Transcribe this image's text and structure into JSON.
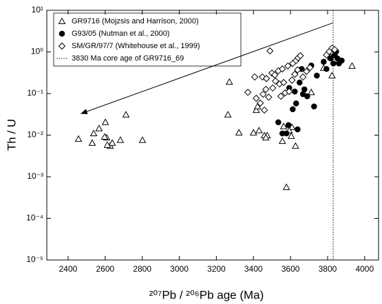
{
  "chart_data": {
    "type": "scatter",
    "x_label": "²⁰⁷Pb / ²⁰⁶Pb age (Ma)",
    "y_label": "Th / U",
    "xlim": [
      2285,
      4075
    ],
    "ylim": [
      1e-05,
      10
    ],
    "log_y": true,
    "xticks": [
      2400,
      2600,
      2800,
      3000,
      3200,
      3400,
      3600,
      3800,
      4000
    ],
    "yticks": [
      {
        "value": 1e-05,
        "label": "10⁻⁵"
      },
      {
        "value": 0.0001,
        "label": "10⁻⁴"
      },
      {
        "value": 0.001,
        "label": "10⁻³"
      },
      {
        "value": 0.01,
        "label": "10⁻²"
      },
      {
        "value": 0.1,
        "label": "10⁻¹"
      },
      {
        "value": 1,
        "label": "10⁰"
      },
      {
        "value": 10,
        "label": "10¹"
      }
    ],
    "legend": "upper left",
    "series": [
      {
        "name": "GR9716 (Mojzsis and Harrison, 2000)",
        "marker": "triangle",
        "color": "#000000",
        "x": [
          2456,
          2538,
          2530,
          2567,
          2627,
          2638,
          2601,
          2608,
          2612,
          2597,
          2682,
          2712,
          2801,
          3262,
          3322,
          3400,
          3459,
          3270,
          3415,
          3422,
          3474,
          3467,
          3556,
          3563,
          3608,
          3627,
          3578,
          3430,
          3593,
          3604,
          3712,
          3779,
          3824,
          3932,
          3816
        ],
        "values": [
          0.0081,
          0.011,
          0.0065,
          0.0145,
          0.0055,
          0.0065,
          0.0204,
          0.0087,
          0.0058,
          0.0091,
          0.0076,
          0.031,
          0.0076,
          0.031,
          0.0115,
          0.0115,
          0.0098,
          0.19,
          0.04,
          0.049,
          0.0098,
          0.0087,
          0.0072,
          0.0162,
          0.0155,
          0.0055,
          0.00056,
          0.0129,
          0.0129,
          0.0095,
          0.107,
          0.41,
          0.27,
          0.46,
          0.76
        ]
      },
      {
        "name": "G93/05 (Nutman et al., 2000)",
        "marker": "circle",
        "color": "#000000",
        "x": [
          3534,
          3556,
          3578,
          3589,
          3612,
          3630,
          3638,
          3649,
          3660,
          3675,
          3690,
          3712,
          3727,
          3742,
          3779,
          3816,
          3838,
          3846,
          3853,
          3861,
          3876,
          3831,
          3794,
          3667,
          3623,
          3593
        ],
        "values": [
          0.0204,
          0.011,
          0.011,
          0.0174,
          0.042,
          0.058,
          0.0138,
          0.184,
          0.39,
          0.126,
          0.086,
          0.47,
          0.049,
          0.27,
          0.58,
          0.7,
          0.84,
          1.02,
          0.7,
          0.53,
          0.62,
          0.53,
          0.39,
          0.097,
          0.112,
          0.136
        ]
      },
      {
        "name": "SM/GR/97/7 (Whitehouse et al., 1999)",
        "marker": "diamond",
        "color": "#000000",
        "x": [
          3489,
          3370,
          3407,
          3448,
          3470,
          3500,
          3515,
          3534,
          3556,
          3586,
          3612,
          3630,
          3641,
          3653,
          3452,
          3467,
          3482,
          3504,
          3519,
          3541,
          3563,
          3548,
          3571,
          3593,
          3608,
          3623,
          3638,
          3667,
          3686,
          3705,
          3415,
          3437,
          3459,
          3794,
          3809,
          3824,
          3838
        ],
        "values": [
          1.06,
          0.107,
          0.25,
          0.25,
          0.23,
          0.31,
          0.28,
          0.35,
          0.39,
          0.46,
          0.53,
          0.62,
          0.72,
          0.81,
          0.096,
          0.126,
          0.082,
          0.136,
          0.199,
          0.17,
          0.184,
          0.086,
          0.104,
          0.112,
          0.21,
          0.29,
          0.37,
          0.25,
          0.34,
          0.42,
          0.077,
          0.059,
          0.04,
          0.84,
          1.02,
          1.23,
          1.14
        ]
      }
    ],
    "vline": {
      "x": 3830,
      "label": "3830 Ma core age of GR9716_69"
    },
    "arrow": {
      "from": [
        3830,
        5
      ],
      "to": [
        2470,
        0.033
      ]
    }
  }
}
